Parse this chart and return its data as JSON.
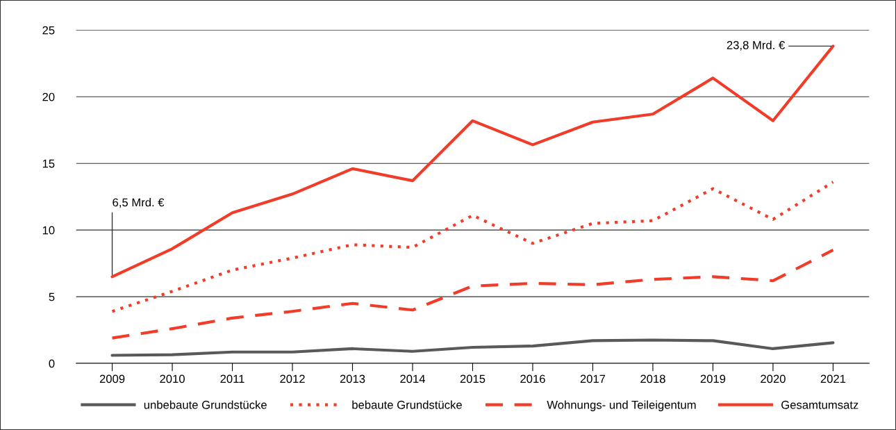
{
  "chart_data": {
    "type": "line",
    "categories": [
      "2009",
      "2010",
      "2011",
      "2012",
      "2013",
      "2014",
      "2015",
      "2016",
      "2017",
      "2018",
      "2019",
      "2020",
      "2021"
    ],
    "series": [
      {
        "name": "unbebaute Grundstücke",
        "color": "#58595b",
        "line_style": "solid",
        "values": [
          0.6,
          0.65,
          0.85,
          0.85,
          1.1,
          0.9,
          1.2,
          1.3,
          1.7,
          1.75,
          1.7,
          1.1,
          1.55
        ]
      },
      {
        "name": "bebaute Grundstücke",
        "color": "#f03c28",
        "line_style": "dotted",
        "values": [
          3.9,
          5.4,
          7.0,
          7.9,
          8.9,
          8.7,
          11.1,
          9.0,
          10.5,
          10.7,
          13.1,
          10.8,
          13.6
        ]
      },
      {
        "name": "Wohnungs- und Teileigentum",
        "color": "#f03c28",
        "line_style": "dashed",
        "values": [
          1.9,
          2.6,
          3.4,
          3.9,
          4.5,
          4.0,
          5.8,
          6.0,
          5.9,
          6.3,
          6.5,
          6.2,
          8.5
        ]
      },
      {
        "name": "Gesamtumsatz",
        "color": "#f03c28",
        "line_style": "solid",
        "values": [
          6.5,
          8.6,
          11.3,
          12.7,
          14.6,
          13.7,
          18.2,
          16.4,
          18.1,
          18.7,
          21.4,
          18.2,
          23.8
        ]
      }
    ],
    "ylim": [
      0,
      25
    ],
    "yticks": [
      0,
      5,
      10,
      15,
      20,
      25
    ],
    "grid": "y",
    "legend": "bottom",
    "marker": "none",
    "annotations": [
      {
        "text": "6,5 Mrd. €",
        "x": "2009",
        "y": 6.5
      },
      {
        "text": "23,8 Mrd. €",
        "x": "2021",
        "y": 23.8
      }
    ]
  }
}
